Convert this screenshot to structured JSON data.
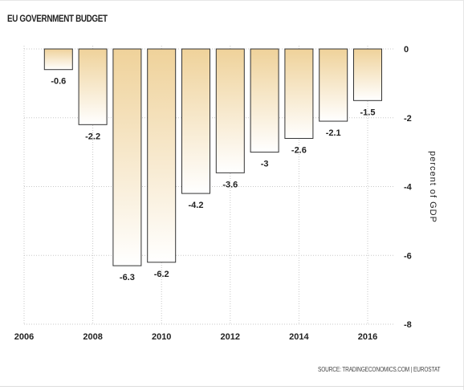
{
  "chart_data": {
    "type": "bar",
    "title": "EU GOVERNMENT BUDGET",
    "ylabel": "percent of GDP",
    "xlabel": "",
    "categories": [
      "2007",
      "2008",
      "2009",
      "2010",
      "2011",
      "2012",
      "2013",
      "2014",
      "2015",
      "2016"
    ],
    "values": [
      -0.6,
      -2.2,
      -6.3,
      -6.2,
      -4.2,
      -3.6,
      -3,
      -2.6,
      -2.1,
      -1.5
    ],
    "value_labels": [
      "-0.6",
      "-2.2",
      "-6.3",
      "-6.2",
      "-4.2",
      "-3.6",
      "-3",
      "-2.6",
      "-2.1",
      "-1.5"
    ],
    "x_ticks": [
      "2006",
      "2008",
      "2010",
      "2012",
      "2014",
      "2016"
    ],
    "x_range": [
      2006,
      2017
    ],
    "y_ticks": [
      "0",
      "-2",
      "-4",
      "-6",
      "-8"
    ],
    "ylim": [
      -8,
      0
    ],
    "y_axis_side": "right",
    "grid": "dotted",
    "legend": "none",
    "colors": {
      "bar_top": "#efd29a",
      "bar_bottom": "#ffffff",
      "bar_stroke": "#333333",
      "grid": "#c8c8c8",
      "text": "#222222"
    }
  },
  "source_note": "SOURCE: TRADINGECONOMICS.COM | EUROSTAT"
}
